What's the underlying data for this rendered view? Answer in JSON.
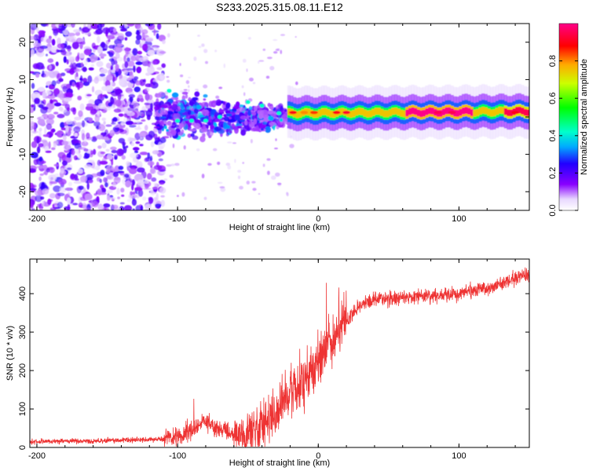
{
  "title": "S233.2025.315.08.11.E12",
  "chart_data": [
    {
      "type": "heatmap",
      "name": "spectrogram",
      "xlabel": "Height of straight line (km)",
      "ylabel": "Frequency (Hz)",
      "xlim": [
        -205,
        150
      ],
      "ylim": [
        -25,
        25
      ],
      "xticks": [
        -200,
        -100,
        0,
        100
      ],
      "yticks": [
        -20,
        -10,
        0,
        10,
        20
      ],
      "xtick_labels": [
        "-200",
        "-100",
        "0",
        "100"
      ],
      "ytick_labels": [
        "-20",
        "-10",
        "0",
        "10",
        "20"
      ],
      "colorbar": {
        "label": "Normalized spectral amplitude",
        "range": [
          0,
          1
        ],
        "ticks": [
          0.0,
          0.2,
          0.4,
          0.6,
          0.8
        ],
        "tick_labels": [
          "0.0",
          "0.2",
          "0.4",
          "0.6",
          "0.8"
        ]
      },
      "features": [
        {
          "region": "noise",
          "x_range": [
            -205,
            -110
          ],
          "freq_range": [
            -25,
            25
          ],
          "amplitude": 0.15
        },
        {
          "region": "transition",
          "x_range": [
            -110,
            -20
          ],
          "freq_range": [
            -10,
            10
          ],
          "amplitude": 0.3
        },
        {
          "region": "signal-band",
          "x_range": [
            -20,
            150
          ],
          "freq_center": [
            1.0,
            1.5
          ],
          "amplitude": 0.95
        }
      ]
    },
    {
      "type": "line",
      "name": "snr",
      "xlabel": "Height of straight line (km)",
      "ylabel": "SNR (10 * v/v)",
      "xlim": [
        -205,
        150
      ],
      "ylim": [
        0,
        490
      ],
      "xticks": [
        -200,
        -100,
        0,
        100
      ],
      "yticks": [
        0,
        100,
        200,
        300,
        400
      ],
      "xtick_labels": [
        "-200",
        "-100",
        "0",
        "100"
      ],
      "ytick_labels": [
        "0",
        "100",
        "200",
        "300",
        "400"
      ],
      "color": "#ee3333",
      "trend": {
        "x": [
          -205,
          -120,
          -100,
          -90,
          -80,
          -70,
          -60,
          -50,
          -40,
          -30,
          -20,
          -10,
          0,
          10,
          20,
          30,
          40,
          60,
          80,
          100,
          120,
          150
        ],
        "y": [
          15,
          20,
          25,
          45,
          70,
          45,
          35,
          40,
          60,
          90,
          140,
          170,
          220,
          280,
          330,
          370,
          385,
          390,
          395,
          400,
          415,
          450
        ]
      }
    }
  ]
}
